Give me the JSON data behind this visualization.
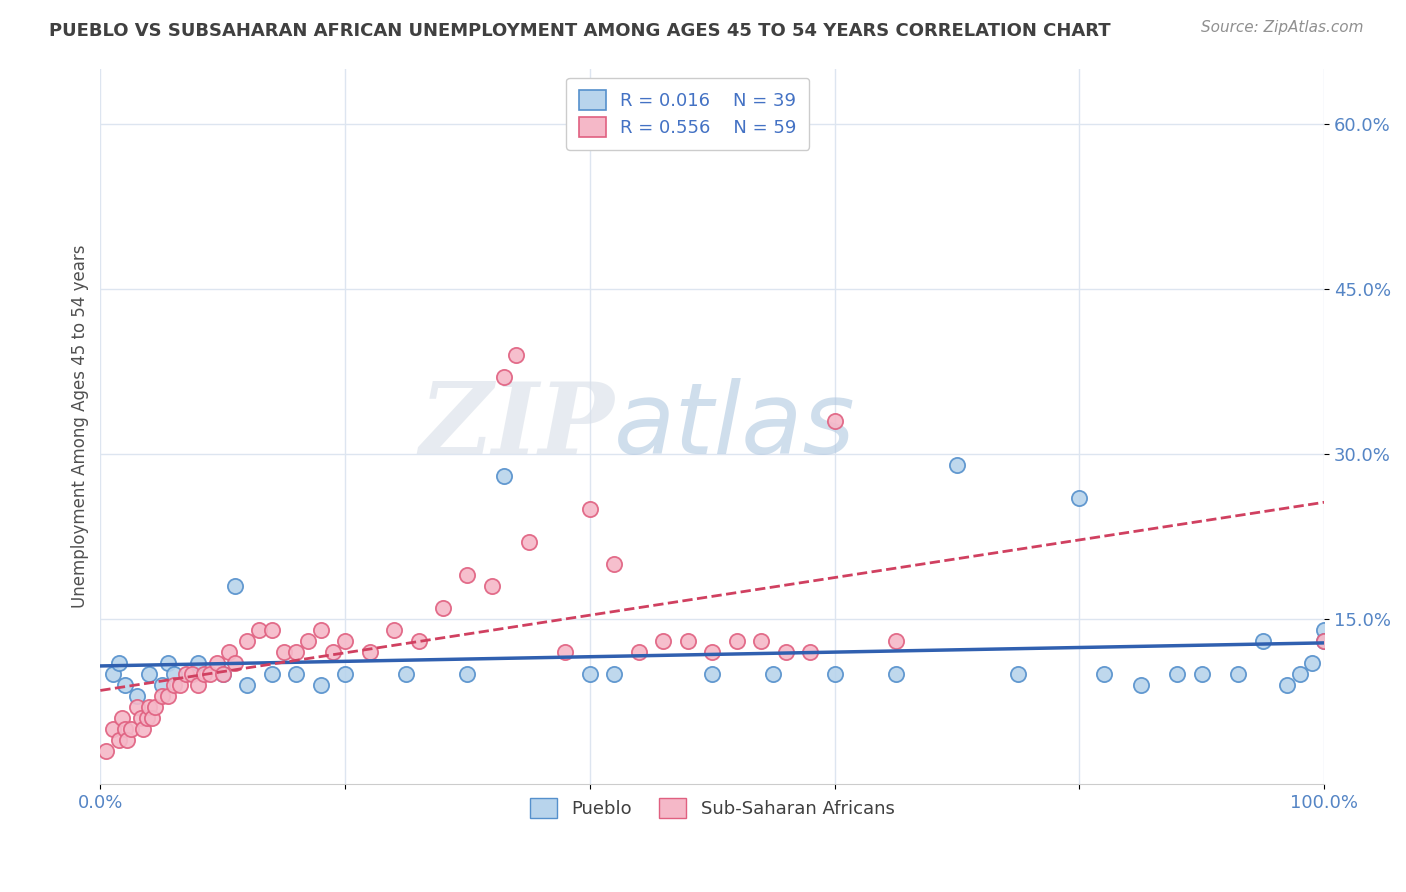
{
  "title": "PUEBLO VS SUBSAHARAN AFRICAN UNEMPLOYMENT AMONG AGES 45 TO 54 YEARS CORRELATION CHART",
  "source_text": "Source: ZipAtlas.com",
  "ylabel": "Unemployment Among Ages 45 to 54 years",
  "xlim": [
    0,
    100
  ],
  "ylim": [
    0,
    65
  ],
  "xtick_positions": [
    0,
    20,
    40,
    60,
    80,
    100
  ],
  "xtick_labels_show": [
    "0.0%",
    "",
    "",
    "",
    "",
    "100.0%"
  ],
  "ytick_values": [
    15,
    30,
    45,
    60
  ],
  "ytick_labels": [
    "15.0%",
    "30.0%",
    "45.0%",
    "60.0%"
  ],
  "legend_r1": "R = 0.016",
  "legend_n1": "N = 39",
  "legend_r2": "R = 0.556",
  "legend_n2": "N = 59",
  "color_pueblo_fill": "#b8d4ec",
  "color_pueblo_edge": "#5590cc",
  "color_subsaharan_fill": "#f5b8c8",
  "color_subsaharan_edge": "#e06080",
  "color_trendline_pueblo": "#3060b0",
  "color_trendline_subsaharan": "#d04060",
  "trendline_subsaharan_style": "--",
  "background_color": "#ffffff",
  "grid_color": "#dde5f0",
  "title_color": "#404040",
  "axis_label_color": "#505050",
  "tick_label_color": "#5585c5",
  "source_color": "#909090",
  "pueblo_x": [
    1.0,
    1.5,
    2.0,
    3.0,
    4.0,
    5.0,
    5.5,
    6.0,
    8.0,
    10.0,
    11.0,
    12.0,
    14.0,
    16.0,
    18.0,
    20.0,
    25.0,
    30.0,
    33.0,
    40.0,
    42.0,
    50.0,
    55.0,
    60.0,
    65.0,
    70.0,
    75.0,
    80.0,
    82.0,
    85.0,
    88.0,
    90.0,
    93.0,
    95.0,
    97.0,
    98.0,
    99.0,
    100.0,
    100.0
  ],
  "pueblo_y": [
    10,
    11,
    9,
    8,
    10,
    9,
    11,
    10,
    11,
    10,
    18,
    9,
    10,
    10,
    9,
    10,
    10,
    10,
    28,
    10,
    10,
    10,
    10,
    10,
    10,
    29,
    10,
    26,
    10,
    9,
    10,
    10,
    10,
    13,
    9,
    10,
    11,
    14,
    13
  ],
  "subsaharan_x": [
    0.5,
    1.0,
    1.5,
    1.8,
    2.0,
    2.2,
    2.5,
    3.0,
    3.3,
    3.5,
    3.8,
    4.0,
    4.2,
    4.5,
    5.0,
    5.5,
    6.0,
    6.5,
    7.0,
    7.5,
    8.0,
    8.5,
    9.0,
    9.5,
    10.0,
    10.5,
    11.0,
    12.0,
    13.0,
    14.0,
    15.0,
    16.0,
    17.0,
    18.0,
    19.0,
    20.0,
    22.0,
    24.0,
    26.0,
    28.0,
    30.0,
    32.0,
    33.0,
    34.0,
    35.0,
    38.0,
    40.0,
    42.0,
    44.0,
    46.0,
    48.0,
    50.0,
    52.0,
    54.0,
    56.0,
    58.0,
    60.0,
    65.0,
    100.0
  ],
  "subsaharan_y": [
    3,
    5,
    4,
    6,
    5,
    4,
    5,
    7,
    6,
    5,
    6,
    7,
    6,
    7,
    8,
    8,
    9,
    9,
    10,
    10,
    9,
    10,
    10,
    11,
    10,
    12,
    11,
    13,
    14,
    14,
    12,
    12,
    13,
    14,
    12,
    13,
    12,
    14,
    13,
    16,
    19,
    18,
    37,
    39,
    22,
    12,
    25,
    20,
    12,
    13,
    13,
    12,
    13,
    13,
    12,
    12,
    33,
    13,
    13
  ],
  "watermark_zip": "ZIP",
  "watermark_atlas": "atlas",
  "watermark_color_zip": "#d8dfe8",
  "watermark_color_atlas": "#b0c8e0"
}
